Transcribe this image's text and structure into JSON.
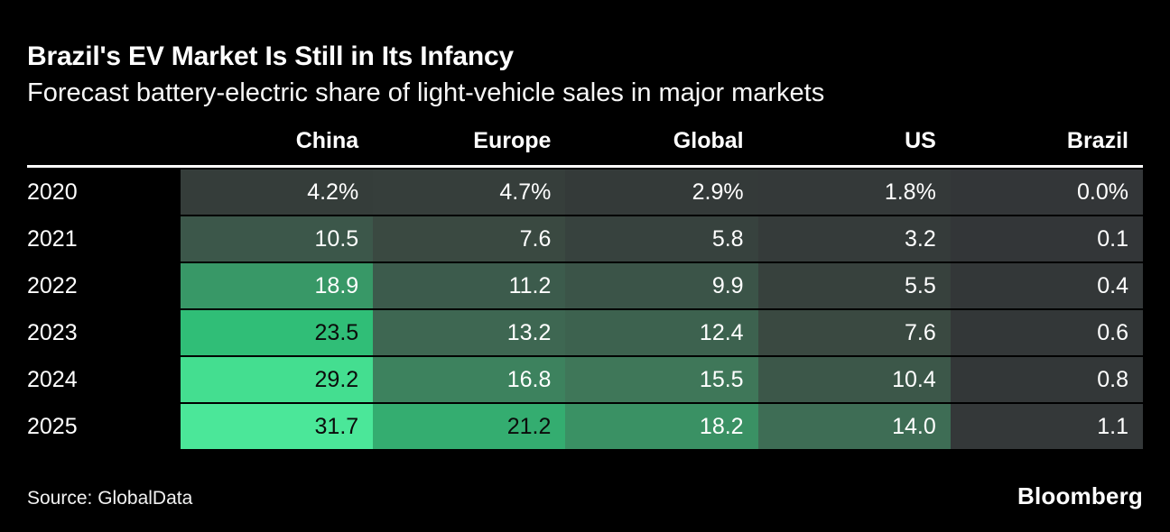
{
  "header": {
    "title": "Brazil's EV Market Is Still in Its Infancy",
    "subtitle": "Forecast battery-electric share of light-vehicle sales in major markets"
  },
  "chart_data": {
    "type": "heatmap",
    "title": "Brazil's EV Market Is Still in Its Infancy",
    "subtitle": "Forecast battery-electric share of light-vehicle sales in major markets",
    "columns": [
      "China",
      "Europe",
      "Global",
      "US",
      "Brazil"
    ],
    "rows": [
      "2020",
      "2021",
      "2022",
      "2023",
      "2024",
      "2025"
    ],
    "unit": "%",
    "values": [
      [
        4.2,
        4.7,
        2.9,
        1.8,
        0.0
      ],
      [
        10.5,
        7.6,
        5.8,
        3.2,
        0.1
      ],
      [
        18.9,
        11.2,
        9.9,
        5.5,
        0.4
      ],
      [
        23.5,
        13.2,
        12.4,
        7.6,
        0.6
      ],
      [
        29.2,
        16.8,
        15.5,
        10.4,
        0.8
      ],
      [
        31.7,
        21.2,
        18.2,
        14.0,
        1.1
      ]
    ],
    "display": [
      [
        "4.2%",
        "4.7%",
        "2.9%",
        "1.8%",
        "0.0%"
      ],
      [
        "10.5",
        "7.6",
        "5.8",
        "3.2",
        "0.1"
      ],
      [
        "18.9",
        "11.2",
        "9.9",
        "5.5",
        "0.4"
      ],
      [
        "23.5",
        "13.2",
        "12.4",
        "7.6",
        "0.6"
      ],
      [
        "29.2",
        "16.8",
        "15.5",
        "10.4",
        "0.8"
      ],
      [
        "31.7",
        "21.2",
        "18.2",
        "14.0",
        "1.1"
      ]
    ],
    "color_scale": {
      "stops": [
        [
          0,
          "#333638"
        ],
        [
          4,
          "#353c3a"
        ],
        [
          8,
          "#3a4a42"
        ],
        [
          12,
          "#3d5f4e"
        ],
        [
          16,
          "#3f7a5b"
        ],
        [
          20,
          "#36a46c"
        ],
        [
          24,
          "#2fc278"
        ],
        [
          28,
          "#41da8b"
        ],
        [
          32,
          "#4ce89a"
        ]
      ],
      "dark_text": "#0b0b0b",
      "light_text": "#ffffff"
    },
    "layout": {
      "legend": "none",
      "grid": "off",
      "value_alignment": "right"
    }
  },
  "footer": {
    "source": "Source: GlobalData",
    "brand": "Bloomberg"
  }
}
